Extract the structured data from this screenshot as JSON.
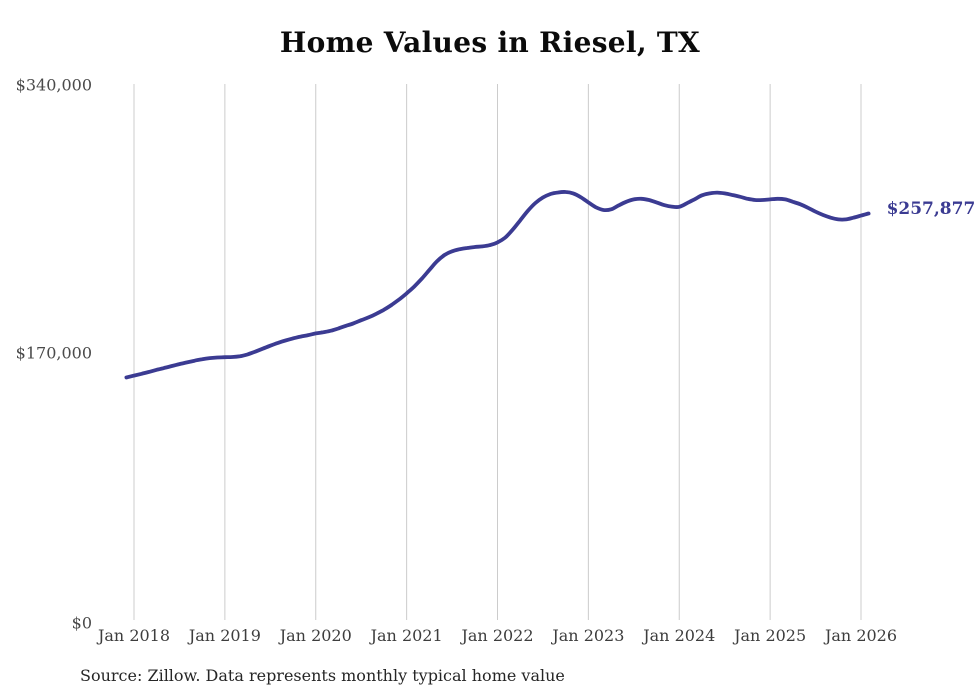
{
  "chart_data": {
    "type": "line",
    "title": "Home Values in Riesel, TX",
    "series_name": "Monthly typical home value",
    "unit": "USD",
    "frequency": "monthly",
    "x_start_month": "2017-12",
    "x_offset_months": -1,
    "x_tick_labels": [
      "Jan 2018",
      "Jan 2019",
      "Jan 2020",
      "Jan 2021",
      "Jan 2022",
      "Jan 2023",
      "Jan 2024",
      "Jan 2025",
      "Jan 2026"
    ],
    "y_tick_labels": [
      "$340,000",
      "$170,000",
      "$0"
    ],
    "y_tick_values": [
      340000,
      170000,
      0
    ],
    "ylim": [
      0,
      340000
    ],
    "grid": "vertical-only",
    "legend": "none",
    "line_color": "#3b3b92",
    "grid_color": "#cccccc",
    "end_label": "$257,877",
    "end_value": 257877,
    "values": [
      153800,
      155000,
      156200,
      157400,
      158700,
      159900,
      161100,
      162300,
      163400,
      164500,
      165400,
      166100,
      166500,
      166700,
      166800,
      167300,
      168500,
      170200,
      172100,
      174000,
      175800,
      177300,
      178600,
      179800,
      180700,
      181800,
      182500,
      183500,
      185000,
      186600,
      188200,
      190200,
      192000,
      194200,
      196800,
      199800,
      203300,
      207200,
      211500,
      216500,
      222000,
      227500,
      231500,
      233900,
      235200,
      236000,
      236600,
      237000,
      237800,
      239500,
      242500,
      247500,
      253500,
      259500,
      264500,
      268000,
      270200,
      271200,
      271500,
      270600,
      268200,
      264900,
      261800,
      260100,
      260500,
      263000,
      265300,
      266800,
      267200,
      266400,
      264900,
      263200,
      262200,
      262100,
      264300,
      266800,
      269400,
      270600,
      271100,
      270600,
      269600,
      268500,
      267200,
      266400,
      266400,
      266800,
      267200,
      266800,
      265300,
      263700,
      261500,
      259000,
      256900,
      255200,
      254100,
      254100,
      255200,
      256500,
      257877
    ]
  },
  "footer": {
    "source": "Source: Zillow. Data represents monthly typical home value"
  }
}
